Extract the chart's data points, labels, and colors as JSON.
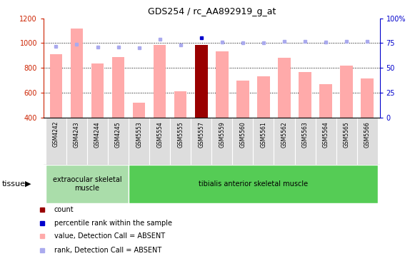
{
  "title": "GDS254 / rc_AA892919_g_at",
  "samples": [
    "GSM4242",
    "GSM4243",
    "GSM4244",
    "GSM4245",
    "GSM5553",
    "GSM5554",
    "GSM5555",
    "GSM5557",
    "GSM5559",
    "GSM5560",
    "GSM5561",
    "GSM5562",
    "GSM5563",
    "GSM5564",
    "GSM5565",
    "GSM5566"
  ],
  "bar_values": [
    910,
    1120,
    835,
    885,
    520,
    985,
    610,
    985,
    935,
    695,
    730,
    880,
    765,
    670,
    820,
    715
  ],
  "bar_colors": [
    "#ffaaaa",
    "#ffaaaa",
    "#ffaaaa",
    "#ffaaaa",
    "#ffaaaa",
    "#ffaaaa",
    "#ffaaaa",
    "#990000",
    "#ffaaaa",
    "#ffaaaa",
    "#ffaaaa",
    "#ffaaaa",
    "#ffaaaa",
    "#ffaaaa",
    "#ffaaaa",
    "#ffaaaa"
  ],
  "rank_values": [
    72,
    74,
    71,
    71,
    70,
    79,
    73,
    80,
    76,
    75,
    75,
    77,
    77,
    76,
    77,
    77
  ],
  "rank_is_dark": [
    false,
    false,
    false,
    false,
    false,
    false,
    false,
    true,
    false,
    false,
    false,
    false,
    false,
    false,
    false,
    false
  ],
  "ylim_left": [
    400,
    1200
  ],
  "ylim_right": [
    0,
    100
  ],
  "yticks_left": [
    400,
    600,
    800,
    1000,
    1200
  ],
  "yticks_right": [
    0,
    25,
    50,
    75,
    100
  ],
  "yticklabels_right": [
    "0",
    "25",
    "50",
    "75",
    "100%"
  ],
  "gridlines": [
    600,
    800,
    1000
  ],
  "tissue_groups": [
    {
      "label": "extraocular skeletal\nmuscle",
      "start": 0,
      "end": 3,
      "color": "#aaddaa"
    },
    {
      "label": "tibialis anterior skeletal muscle",
      "start": 4,
      "end": 15,
      "color": "#55cc55"
    }
  ],
  "legend_items": [
    {
      "color": "#990000",
      "label": "count"
    },
    {
      "color": "#0000cc",
      "label": "percentile rank within the sample"
    },
    {
      "color": "#ffaaaa",
      "label": "value, Detection Call = ABSENT"
    },
    {
      "color": "#aaaaee",
      "label": "rank, Detection Call = ABSENT"
    }
  ],
  "left_axis_color": "#cc2200",
  "right_axis_color": "#0000cc",
  "tissue_label": "tissue",
  "bar_width": 0.6
}
